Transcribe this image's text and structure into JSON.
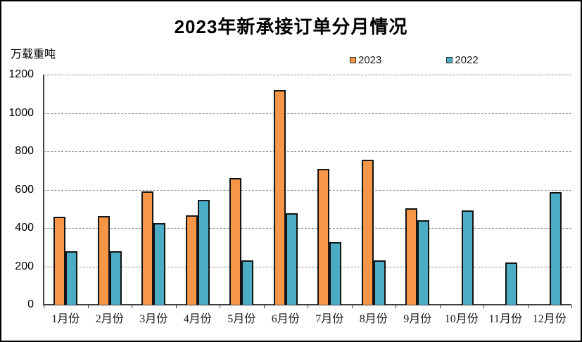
{
  "chart_data": {
    "type": "bar",
    "title": "2023年新承接订单分月情况",
    "unit_label": "万载重吨",
    "xlabel": "",
    "ylabel": "万载重吨",
    "categories": [
      "1月份",
      "2月份",
      "3月份",
      "4月份",
      "5月份",
      "6月份",
      "7月份",
      "8月份",
      "9月份",
      "10月份",
      "11月份",
      "12月份"
    ],
    "series": [
      {
        "name": "2023",
        "color": "#F79646",
        "values": [
          460,
          462,
          590,
          467,
          660,
          1120,
          710,
          756,
          502,
          null,
          null,
          null
        ]
      },
      {
        "name": "2022",
        "color": "#4BACC6",
        "values": [
          280,
          280,
          427,
          546,
          230,
          476,
          325,
          232,
          440,
          490,
          219,
          586
        ]
      }
    ],
    "ylim": [
      0,
      1200
    ],
    "ytick_step": 200,
    "ytick_labels": [
      "0",
      "200",
      "400",
      "600",
      "800",
      "1000",
      "1200"
    ],
    "grid": "horizontal-dashed",
    "legend_position": "top-center",
    "legend_entries": [
      "2023",
      "2022"
    ]
  },
  "colors": {
    "series_2023": "#F79646",
    "series_2022": "#4BACC6",
    "bar_border": "#141414",
    "gridline": "#8c8c8c",
    "axis": "#3f3f3f",
    "background": "#ffffff",
    "frame_border": "#000000"
  }
}
